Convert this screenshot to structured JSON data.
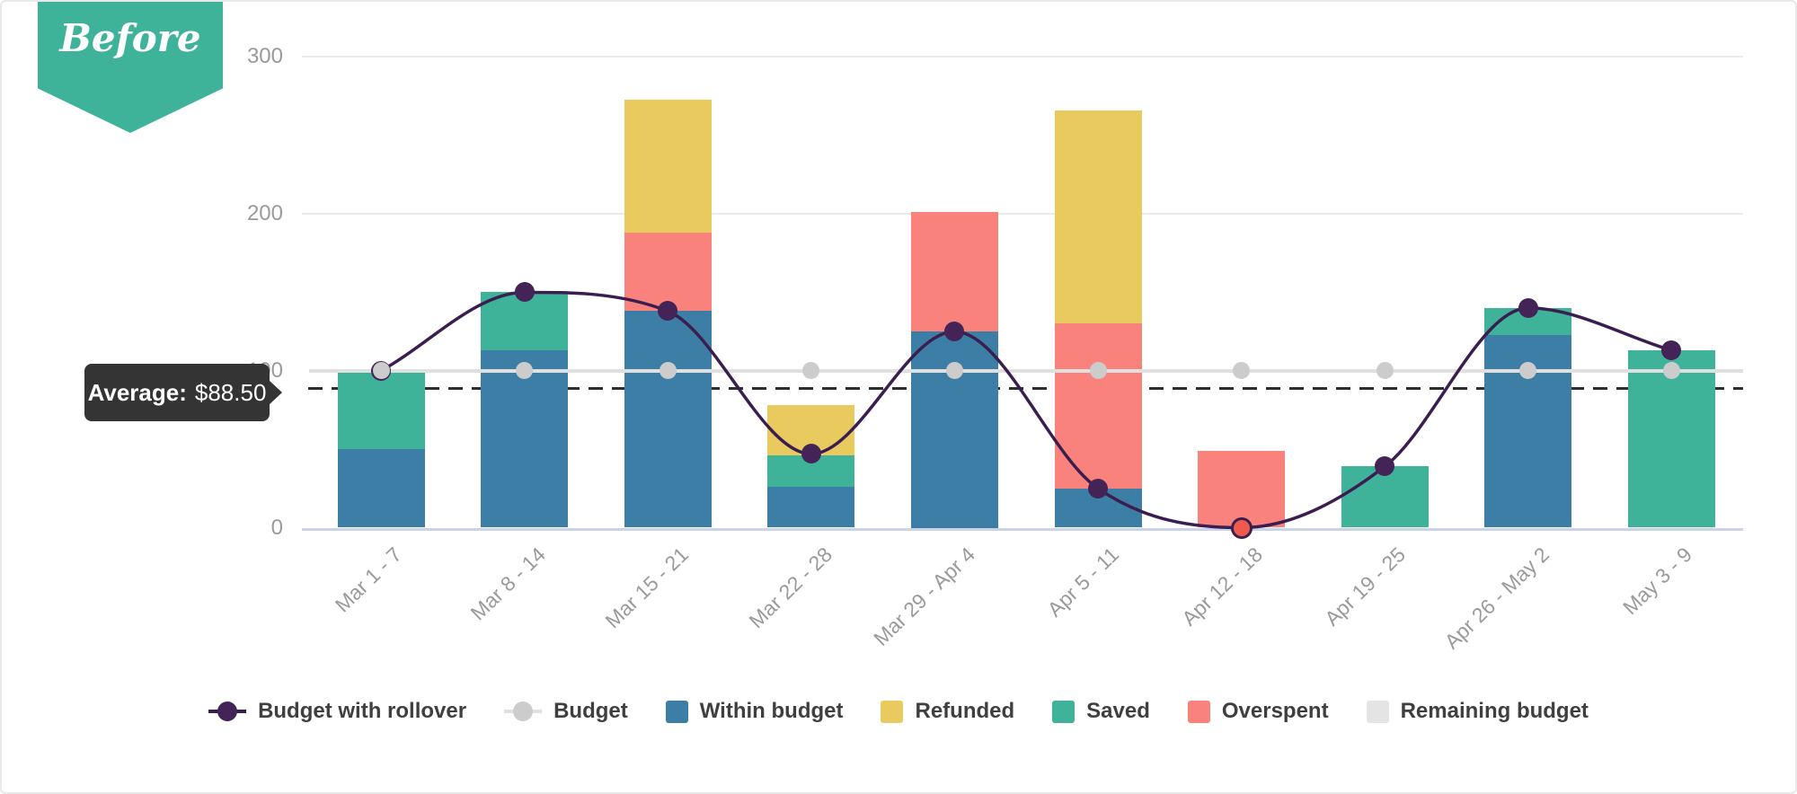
{
  "badge": {
    "label": "Before",
    "bg_color": "#3FB39A"
  },
  "average_tooltip": {
    "label": "Average:",
    "value": "$88.50"
  },
  "chart_data": {
    "type": "bar",
    "stacked": true,
    "title": "",
    "xlabel": "",
    "ylabel": "",
    "ylim": [
      0,
      300
    ],
    "yticks": [
      0,
      100,
      200,
      300
    ],
    "grid": "horizontal",
    "legend_position": "bottom",
    "categories": [
      "Mar 1 - 7",
      "Mar 8 - 14",
      "Mar 15 - 21",
      "Mar 22 - 28",
      "Mar 29 - Apr 4",
      "Apr 5 - 11",
      "Apr 12 - 18",
      "Apr 19 - 25",
      "Apr 26 - May 2",
      "May 3 - 9"
    ],
    "bar_series": [
      {
        "name": "Within budget",
        "color": "#3D7EA6",
        "values": [
          50,
          113,
          138,
          26,
          125,
          25,
          0,
          0,
          123,
          0
        ]
      },
      {
        "name": "Saved",
        "color": "#3FB39A",
        "values": [
          50,
          37,
          0,
          20,
          0,
          0,
          0,
          39,
          17,
          113
        ]
      },
      {
        "name": "Overspent",
        "color": "#F9837C",
        "values": [
          0,
          0,
          50,
          0,
          76,
          105,
          49,
          0,
          0,
          0
        ]
      },
      {
        "name": "Refunded",
        "color": "#E8CA5E",
        "values": [
          0,
          0,
          85,
          32,
          0,
          136,
          0,
          0,
          0,
          0
        ]
      },
      {
        "name": "Remaining budget",
        "color": "#E4E4E4",
        "values": [
          0,
          0,
          0,
          0,
          0,
          0,
          0,
          0,
          0,
          0
        ]
      }
    ],
    "line_series": [
      {
        "name": "Budget",
        "style": "straight",
        "line_color": "#E0E0E0",
        "point_color": "#CCCCCC",
        "values": [
          100,
          100,
          100,
          100,
          100,
          100,
          100,
          100,
          100,
          100
        ]
      },
      {
        "name": "Budget with rollover",
        "style": "smooth",
        "line_color": "#3B1E50",
        "point_color": "#442457",
        "values": [
          100,
          150,
          138,
          47,
          125,
          25,
          0,
          39,
          140,
          113
        ],
        "point_overrides": {
          "6": {
            "fill": "#F05A4D",
            "stroke": "#3B1E50"
          }
        }
      }
    ],
    "average_line": {
      "value": 88.5,
      "label": "Average: $88.50",
      "dash_color": "#2E2E2E"
    }
  },
  "legend": {
    "items": [
      {
        "label": "Budget with rollover",
        "marker": "line-dot",
        "dot_color": "#442457",
        "line_color": "#3B1E50"
      },
      {
        "label": "Budget",
        "marker": "line-dot",
        "dot_color": "#CCCCCC",
        "line_color": "#E0E0E0"
      },
      {
        "label": "Within budget",
        "marker": "square",
        "color": "#3D7EA6"
      },
      {
        "label": "Refunded",
        "marker": "square",
        "color": "#E8CA5E"
      },
      {
        "label": "Saved",
        "marker": "square",
        "color": "#3FB39A"
      },
      {
        "label": "Overspent",
        "marker": "square",
        "color": "#F9837C"
      },
      {
        "label": "Remaining budget",
        "marker": "square",
        "color": "#E4E4E4"
      }
    ]
  }
}
